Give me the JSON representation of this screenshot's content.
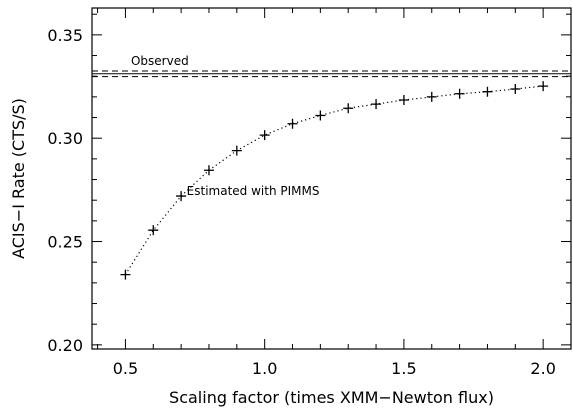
{
  "chart_data": {
    "type": "scatter",
    "xlabel": "Scaling factor (times XMM−Newton flux)",
    "ylabel": "ACIS−I Rate (CTS/S)",
    "xlim": [
      0.38,
      2.1
    ],
    "ylim": [
      0.198,
      0.363
    ],
    "xticks": [
      0.5,
      1.0,
      1.5,
      2.0
    ],
    "xtick_labels": [
      "0.5",
      "1.0",
      "1.5",
      "2.0"
    ],
    "yticks": [
      0.2,
      0.25,
      0.3,
      0.35
    ],
    "ytick_labels": [
      "0.20",
      "0.25",
      "0.30",
      "0.35"
    ],
    "grid": false,
    "series": [
      {
        "marker": "plus",
        "line": "dotted",
        "x": [
          0.5,
          0.6,
          0.7,
          0.8,
          0.9,
          1.0,
          1.1,
          1.2,
          1.3,
          1.4,
          1.5,
          1.6,
          1.7,
          1.8,
          1.9,
          2.0
        ],
        "y": [
          0.234,
          0.2555,
          0.272,
          0.2845,
          0.294,
          0.3015,
          0.307,
          0.311,
          0.3145,
          0.3165,
          0.3185,
          0.32,
          0.3215,
          0.3225,
          0.3238,
          0.3252
        ]
      }
    ],
    "reference_lines": [
      {
        "y": 0.3312,
        "style": "solid"
      },
      {
        "y": 0.3325,
        "style": "dashed"
      },
      {
        "y": 0.3298,
        "style": "dashed"
      }
    ],
    "annotations": [
      {
        "text": "Observed",
        "x": 0.52,
        "y": 0.3355
      },
      {
        "text": "Estimated with PIMMS",
        "x": 0.72,
        "y": 0.2725
      }
    ]
  }
}
